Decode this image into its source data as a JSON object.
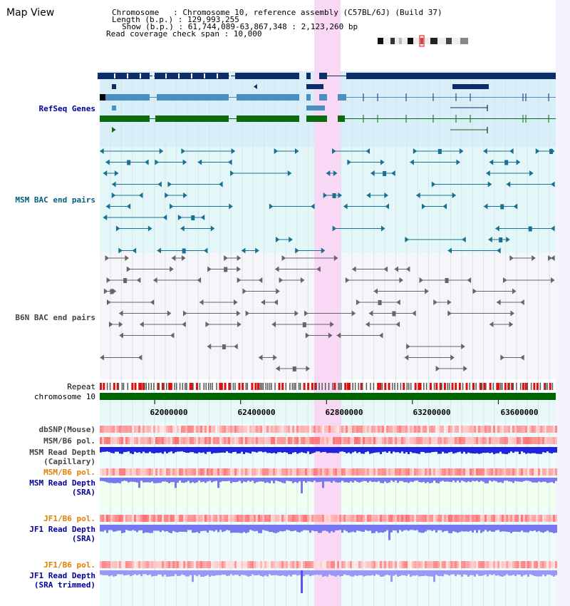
{
  "title": "Map View",
  "header": {
    "chromosome_line": "Chromosome   : Chromosome 10, reference assembly (C57BL/6J) (Build 37)",
    "length_line": "Length (b.p.) : 129,993,255",
    "show_line": "Show (b.p.) : 61,744,089-63,867,348 : 2,123,260 bp",
    "coverage_line": "Read coverage check span : 10,000"
  },
  "tracks": {
    "refseq": "RefSeq Genes",
    "msm_bac": "MSM BAC end pairs",
    "b6n_bac": "B6N BAC end pairs",
    "repeat": "Repeat",
    "chromosome": "chromosome 10",
    "dbsnp": "dbSNP(Mouse)",
    "msm_b6_pol_1": "MSM/B6 pol.",
    "msm_depth_cap_1": "MSM Read Depth",
    "msm_depth_cap_2": "(Capillary)",
    "msm_b6_pol_2": "MSM/B6 pol.",
    "msm_depth_sra_1": "MSM Read Depth",
    "msm_depth_sra_2": "(SRA)",
    "jf1_b6_pol_1": "JF1/B6 pol.",
    "jf1_depth_sra_1": "JF1 Read Depth",
    "jf1_depth_sra_2": "(SRA)",
    "jf1_b6_pol_2": "JF1/B6 pol.",
    "jf1_depth_trim_1": "JF1 Read Depth",
    "jf1_depth_trim_2": "(SRA trimmed)"
  },
  "axis": {
    "ticks": [
      "62000000",
      "62400000",
      "62800000",
      "63200000",
      "63600000"
    ],
    "tick_values": [
      62000000,
      62400000,
      62800000,
      63200000,
      63600000
    ],
    "range": [
      61744089,
      63867348
    ]
  },
  "colors": {
    "refseq_dark": "#0b2d68",
    "refseq_mid": "#4a8fbf",
    "refseq_green": "#0d6b0d",
    "refseq_bg": "#d8eef8",
    "msm_bg": "#e4f7f8",
    "b6n_bg": "#f5f5fa",
    "msm_feature": "#1a7090",
    "b6n_feature": "#666666",
    "highlight": "#f8d8f4",
    "chromosome": "#006600",
    "depth_blue": "#2222dd",
    "depth_light": "#7777f0",
    "snp_red": "#e04040",
    "label_blue": "#000099",
    "label_teal": "#006080",
    "label_orange": "#e08000"
  }
}
